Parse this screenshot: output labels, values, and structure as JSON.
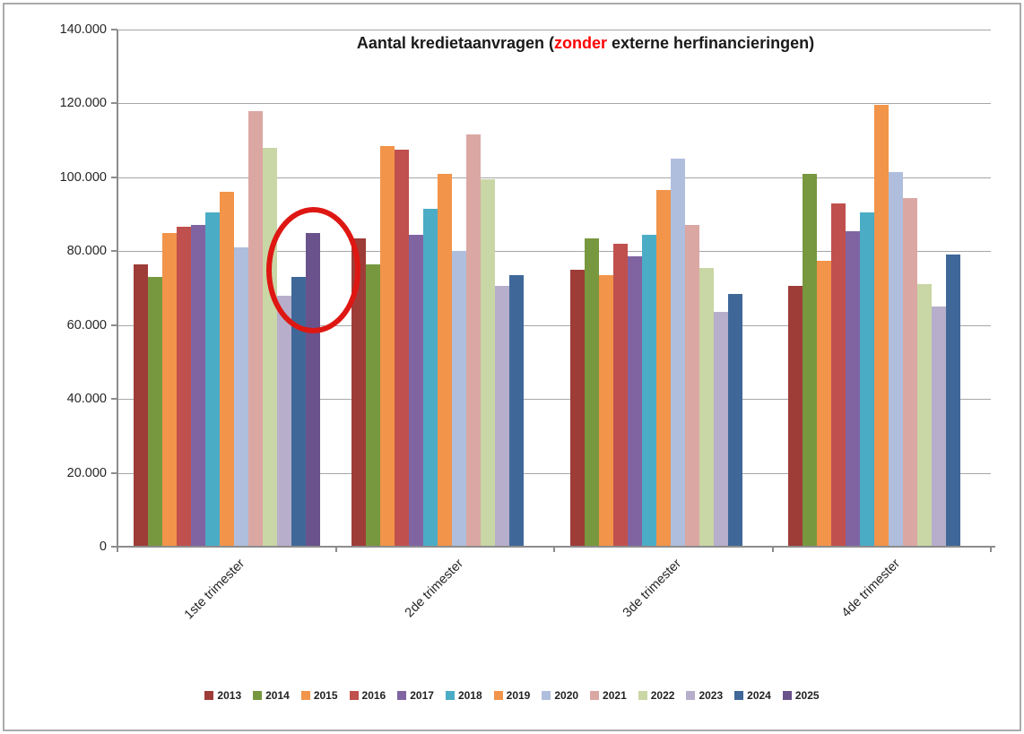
{
  "chart_data": {
    "type": "bar",
    "title": {
      "prefix": "Aantal kredietaanvragen (",
      "highlight": "zonder",
      "suffix": " externe herfinancieringen)",
      "highlight_color": "#ff0000"
    },
    "categories": [
      "1ste trimester",
      "2de trimester",
      "3de trimester",
      "4de trimester"
    ],
    "series": [
      {
        "name": "2013",
        "color": "#9e3c38",
        "values": [
          76500,
          83500,
          75000,
          70500
        ]
      },
      {
        "name": "2014",
        "color": "#77983e",
        "values": [
          73000,
          76500,
          83500,
          101000
        ]
      },
      {
        "name": "2015",
        "color": "#f2944a",
        "values": [
          85000,
          108500,
          73500,
          77500
        ]
      },
      {
        "name": "2016",
        "color": "#c0504d",
        "values": [
          86500,
          107500,
          82000,
          93000
        ]
      },
      {
        "name": "2017",
        "color": "#8064a2",
        "values": [
          87000,
          84500,
          78500,
          85500
        ]
      },
      {
        "name": "2018",
        "color": "#4bacc6",
        "values": [
          90500,
          91500,
          84500,
          90500
        ]
      },
      {
        "name": "2019",
        "color": "#f2944a",
        "values": [
          96000,
          101000,
          96500,
          119500
        ]
      },
      {
        "name": "2020",
        "color": "#afbedc",
        "values": [
          81000,
          80000,
          105000,
          101500
        ]
      },
      {
        "name": "2021",
        "color": "#dba7a3",
        "values": [
          118000,
          111500,
          87000,
          94500
        ]
      },
      {
        "name": "2022",
        "color": "#c9d6a5",
        "values": [
          108000,
          99500,
          75500,
          71000
        ]
      },
      {
        "name": "2023",
        "color": "#b7aecb",
        "values": [
          68000,
          70500,
          63500,
          65000
        ]
      },
      {
        "name": "2024",
        "color": "#3f6899",
        "values": [
          73000,
          73500,
          68500,
          79000
        ]
      },
      {
        "name": "2025",
        "color": "#6a538c",
        "values": [
          85000,
          null,
          null,
          null
        ]
      }
    ],
    "ylim": [
      0,
      140000
    ],
    "ytick_step": 20000,
    "ytick_labels": [
      "0",
      "20.000",
      "40.000",
      "60.000",
      "80.000",
      "100.000",
      "120.000",
      "140.000"
    ],
    "grid": true,
    "legend_position": "bottom",
    "annotation": {
      "shape": "ellipse",
      "color": "#de1713",
      "highlights": "2023, 2024 and 2025 bars of 1ste trimester"
    }
  }
}
